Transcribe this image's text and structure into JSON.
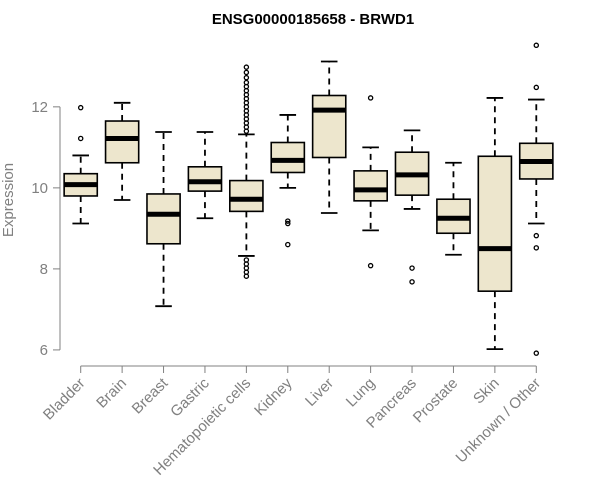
{
  "chart_data": {
    "type": "boxplot",
    "title": "ENSG00000185658 - BRWD1",
    "xlabel": "",
    "ylabel": "Expression",
    "ylim": [
      5.85,
      13.65
    ],
    "yticks": [
      6,
      8,
      10,
      12
    ],
    "grid": false,
    "box_fill": "#ede6cd",
    "box_stroke": "#000000",
    "categories": [
      "Bladder",
      "Brain",
      "Breast",
      "Gastric",
      "Hematopoietic cells",
      "Kidney",
      "Liver",
      "Lung",
      "Pancreas",
      "Prostate",
      "Skin",
      "Unknown / Other"
    ],
    "series": [
      {
        "q1": 9.8,
        "median": 10.08,
        "q3": 10.35,
        "whisker_low": 9.12,
        "whisker_high": 10.8,
        "outliers": [
          11.22,
          11.98
        ]
      },
      {
        "q1": 10.62,
        "median": 11.22,
        "q3": 11.65,
        "whisker_low": 9.7,
        "whisker_high": 12.1,
        "outliers": []
      },
      {
        "q1": 8.62,
        "median": 9.35,
        "q3": 9.85,
        "whisker_low": 7.08,
        "whisker_high": 11.38,
        "outliers": []
      },
      {
        "q1": 9.92,
        "median": 10.15,
        "q3": 10.52,
        "whisker_low": 9.25,
        "whisker_high": 11.38,
        "outliers": []
      },
      {
        "q1": 9.42,
        "median": 9.72,
        "q3": 10.18,
        "whisker_low": 8.32,
        "whisker_high": 11.32,
        "outliers": [
          7.82,
          7.92,
          8.02,
          8.12,
          8.22,
          11.4,
          11.5,
          11.6,
          11.7,
          11.8,
          11.9,
          12.0,
          12.1,
          12.2,
          12.3,
          12.4,
          12.5,
          12.6,
          12.72,
          12.85,
          12.98
        ]
      },
      {
        "q1": 10.38,
        "median": 10.68,
        "q3": 11.12,
        "whisker_low": 10.0,
        "whisker_high": 11.8,
        "outliers": [
          8.6,
          9.12,
          9.18
        ]
      },
      {
        "q1": 10.75,
        "median": 11.92,
        "q3": 12.28,
        "whisker_low": 9.38,
        "whisker_high": 13.12,
        "outliers": []
      },
      {
        "q1": 9.68,
        "median": 9.95,
        "q3": 10.42,
        "whisker_low": 8.95,
        "whisker_high": 11.0,
        "outliers": [
          8.08,
          12.22
        ]
      },
      {
        "q1": 9.82,
        "median": 10.32,
        "q3": 10.88,
        "whisker_low": 9.48,
        "whisker_high": 11.42,
        "outliers": [
          7.68,
          8.02
        ]
      },
      {
        "q1": 8.88,
        "median": 9.25,
        "q3": 9.72,
        "whisker_low": 8.35,
        "whisker_high": 10.62,
        "outliers": []
      },
      {
        "q1": 7.45,
        "median": 8.5,
        "q3": 10.78,
        "whisker_low": 6.02,
        "whisker_high": 12.22,
        "outliers": []
      },
      {
        "q1": 10.22,
        "median": 10.65,
        "q3": 11.1,
        "whisker_low": 9.12,
        "whisker_high": 12.18,
        "outliers": [
          5.92,
          8.52,
          8.82,
          12.48,
          13.52
        ]
      }
    ]
  }
}
